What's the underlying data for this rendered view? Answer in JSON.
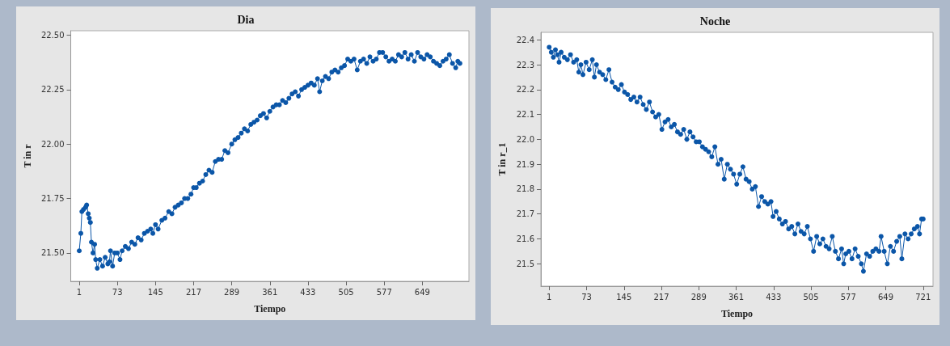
{
  "chart_data": [
    {
      "type": "line",
      "title": "Dia",
      "xlabel": "Tiempo",
      "ylabel": "T in r",
      "marker": "circle",
      "line_style": "solid",
      "grid": false,
      "xlim": [
        -15,
        737
      ],
      "xticks": [
        1,
        73,
        145,
        217,
        289,
        361,
        433,
        505,
        577,
        649
      ],
      "ylim": [
        21.37,
        22.52
      ],
      "yticks": [
        {
          "value": 21.5,
          "label": "21.50"
        },
        {
          "value": 21.75,
          "label": "21.75"
        },
        {
          "value": 22,
          "label": "22.00"
        },
        {
          "value": 22.25,
          "label": "22.25"
        },
        {
          "value": 22.5,
          "label": "22.50"
        }
      ],
      "series": [
        {
          "color": "#0b56a8",
          "x": [
            1,
            4,
            6,
            9,
            13,
            15,
            18,
            20,
            22,
            24,
            27,
            30,
            32,
            35,
            40,
            45,
            50,
            55,
            58,
            60,
            64,
            68,
            73,
            78,
            82,
            88,
            94,
            100,
            106,
            112,
            118,
            124,
            130,
            136,
            140,
            145,
            150,
            157,
            163,
            170,
            176,
            182,
            188,
            194,
            200,
            206,
            212,
            217,
            222,
            228,
            234,
            240,
            246,
            252,
            258,
            264,
            270,
            276,
            282,
            289,
            295,
            301,
            307,
            313,
            319,
            325,
            331,
            337,
            343,
            349,
            355,
            361,
            367,
            373,
            379,
            385,
            391,
            397,
            403,
            409,
            415,
            421,
            427,
            433,
            439,
            445,
            451,
            455,
            460,
            466,
            472,
            478,
            484,
            490,
            496,
            502,
            508,
            514,
            520,
            526,
            532,
            538,
            544,
            550,
            556,
            562,
            568,
            574,
            580,
            586,
            592,
            598,
            604,
            610,
            616,
            622,
            628,
            634,
            640,
            646,
            652,
            658,
            664,
            670,
            676,
            682,
            688,
            694,
            700,
            706,
            712,
            716,
            720
          ],
          "values": [
            21.51,
            21.59,
            21.69,
            21.7,
            21.71,
            21.72,
            21.68,
            21.66,
            21.64,
            21.55,
            21.5,
            21.54,
            21.47,
            21.43,
            21.47,
            21.44,
            21.48,
            21.45,
            21.46,
            21.51,
            21.44,
            21.5,
            21.5,
            21.47,
            21.51,
            21.53,
            21.52,
            21.55,
            21.54,
            21.57,
            21.56,
            21.59,
            21.6,
            21.61,
            21.59,
            21.63,
            21.61,
            21.65,
            21.66,
            21.69,
            21.68,
            21.71,
            21.72,
            21.73,
            21.75,
            21.75,
            21.77,
            21.8,
            21.8,
            21.82,
            21.83,
            21.86,
            21.88,
            21.87,
            21.92,
            21.93,
            21.93,
            21.97,
            21.96,
            22.0,
            22.02,
            22.03,
            22.05,
            22.07,
            22.06,
            22.09,
            22.1,
            22.11,
            22.13,
            22.14,
            22.12,
            22.15,
            22.17,
            22.18,
            22.18,
            22.2,
            22.19,
            22.21,
            22.23,
            22.24,
            22.22,
            22.25,
            22.26,
            22.27,
            22.28,
            22.27,
            22.3,
            22.24,
            22.29,
            22.31,
            22.3,
            22.33,
            22.34,
            22.33,
            22.35,
            22.36,
            22.39,
            22.38,
            22.39,
            22.34,
            22.38,
            22.39,
            22.37,
            22.4,
            22.38,
            22.39,
            22.42,
            22.42,
            22.4,
            22.38,
            22.39,
            22.38,
            22.41,
            22.4,
            22.42,
            22.39,
            22.41,
            22.38,
            22.42,
            22.4,
            22.39,
            22.41,
            22.4,
            22.38,
            22.37,
            22.36,
            22.38,
            22.39,
            22.41,
            22.37,
            22.35,
            22.38,
            22.37
          ]
        }
      ]
    },
    {
      "type": "line",
      "title": "Noche",
      "xlabel": "Tiempo",
      "ylabel": "T in r_1",
      "marker": "circle",
      "line_style": "solid",
      "grid": false,
      "xlim": [
        -15,
        740
      ],
      "xticks": [
        1,
        73,
        145,
        217,
        289,
        361,
        433,
        505,
        577,
        649,
        721
      ],
      "ylim": [
        21.41,
        22.43
      ],
      "yticks": [
        21.5,
        21.6,
        21.7,
        21.8,
        21.9,
        {
          "value": 22,
          "label": "22.0"
        },
        22.1,
        22.2,
        22.3,
        22.4
      ],
      "series": [
        {
          "color": "#0b56a8",
          "x": [
            1,
            5,
            9,
            13,
            17,
            20,
            24,
            30,
            36,
            42,
            48,
            54,
            58,
            62,
            66,
            72,
            78,
            84,
            88,
            92,
            98,
            104,
            110,
            116,
            122,
            128,
            134,
            140,
            146,
            152,
            158,
            164,
            170,
            176,
            182,
            188,
            194,
            200,
            206,
            212,
            218,
            224,
            230,
            236,
            242,
            248,
            254,
            260,
            266,
            272,
            278,
            284,
            290,
            296,
            302,
            308,
            314,
            320,
            326,
            332,
            338,
            344,
            350,
            356,
            362,
            368,
            374,
            380,
            386,
            392,
            398,
            404,
            410,
            416,
            422,
            428,
            432,
            438,
            444,
            450,
            456,
            462,
            468,
            474,
            480,
            486,
            492,
            498,
            504,
            510,
            516,
            522,
            528,
            534,
            540,
            546,
            552,
            558,
            564,
            568,
            572,
            578,
            584,
            590,
            596,
            602,
            606,
            612,
            618,
            624,
            630,
            636,
            640,
            646,
            652,
            658,
            664,
            670,
            676,
            680,
            686,
            692,
            698,
            704,
            710,
            714,
            718,
            721
          ],
          "values": [
            22.37,
            22.35,
            22.33,
            22.36,
            22.34,
            22.31,
            22.35,
            22.33,
            22.32,
            22.34,
            22.31,
            22.32,
            22.27,
            22.3,
            22.26,
            22.31,
            22.28,
            22.32,
            22.25,
            22.3,
            22.27,
            22.26,
            22.24,
            22.28,
            22.23,
            22.21,
            22.2,
            22.22,
            22.19,
            22.18,
            22.16,
            22.17,
            22.15,
            22.17,
            22.14,
            22.12,
            22.15,
            22.11,
            22.09,
            22.1,
            22.04,
            22.07,
            22.08,
            22.05,
            22.06,
            22.03,
            22.02,
            22.04,
            22.0,
            22.03,
            22.01,
            21.99,
            21.99,
            21.97,
            21.96,
            21.95,
            21.93,
            21.97,
            21.9,
            21.92,
            21.84,
            21.9,
            21.88,
            21.86,
            21.82,
            21.86,
            21.89,
            21.84,
            21.83,
            21.8,
            21.81,
            21.73,
            21.77,
            21.75,
            21.74,
            21.75,
            21.69,
            21.71,
            21.68,
            21.66,
            21.67,
            21.64,
            21.65,
            21.62,
            21.66,
            21.63,
            21.62,
            21.65,
            21.6,
            21.55,
            21.61,
            21.58,
            21.6,
            21.57,
            21.56,
            21.61,
            21.55,
            21.52,
            21.56,
            21.5,
            21.54,
            21.55,
            21.52,
            21.56,
            21.53,
            21.5,
            21.47,
            21.54,
            21.53,
            21.55,
            21.56,
            21.55,
            21.61,
            21.55,
            21.5,
            21.57,
            21.55,
            21.59,
            21.61,
            21.52,
            21.62,
            21.6,
            21.62,
            21.64,
            21.65,
            21.62,
            21.68,
            21.68
          ]
        }
      ]
    }
  ]
}
